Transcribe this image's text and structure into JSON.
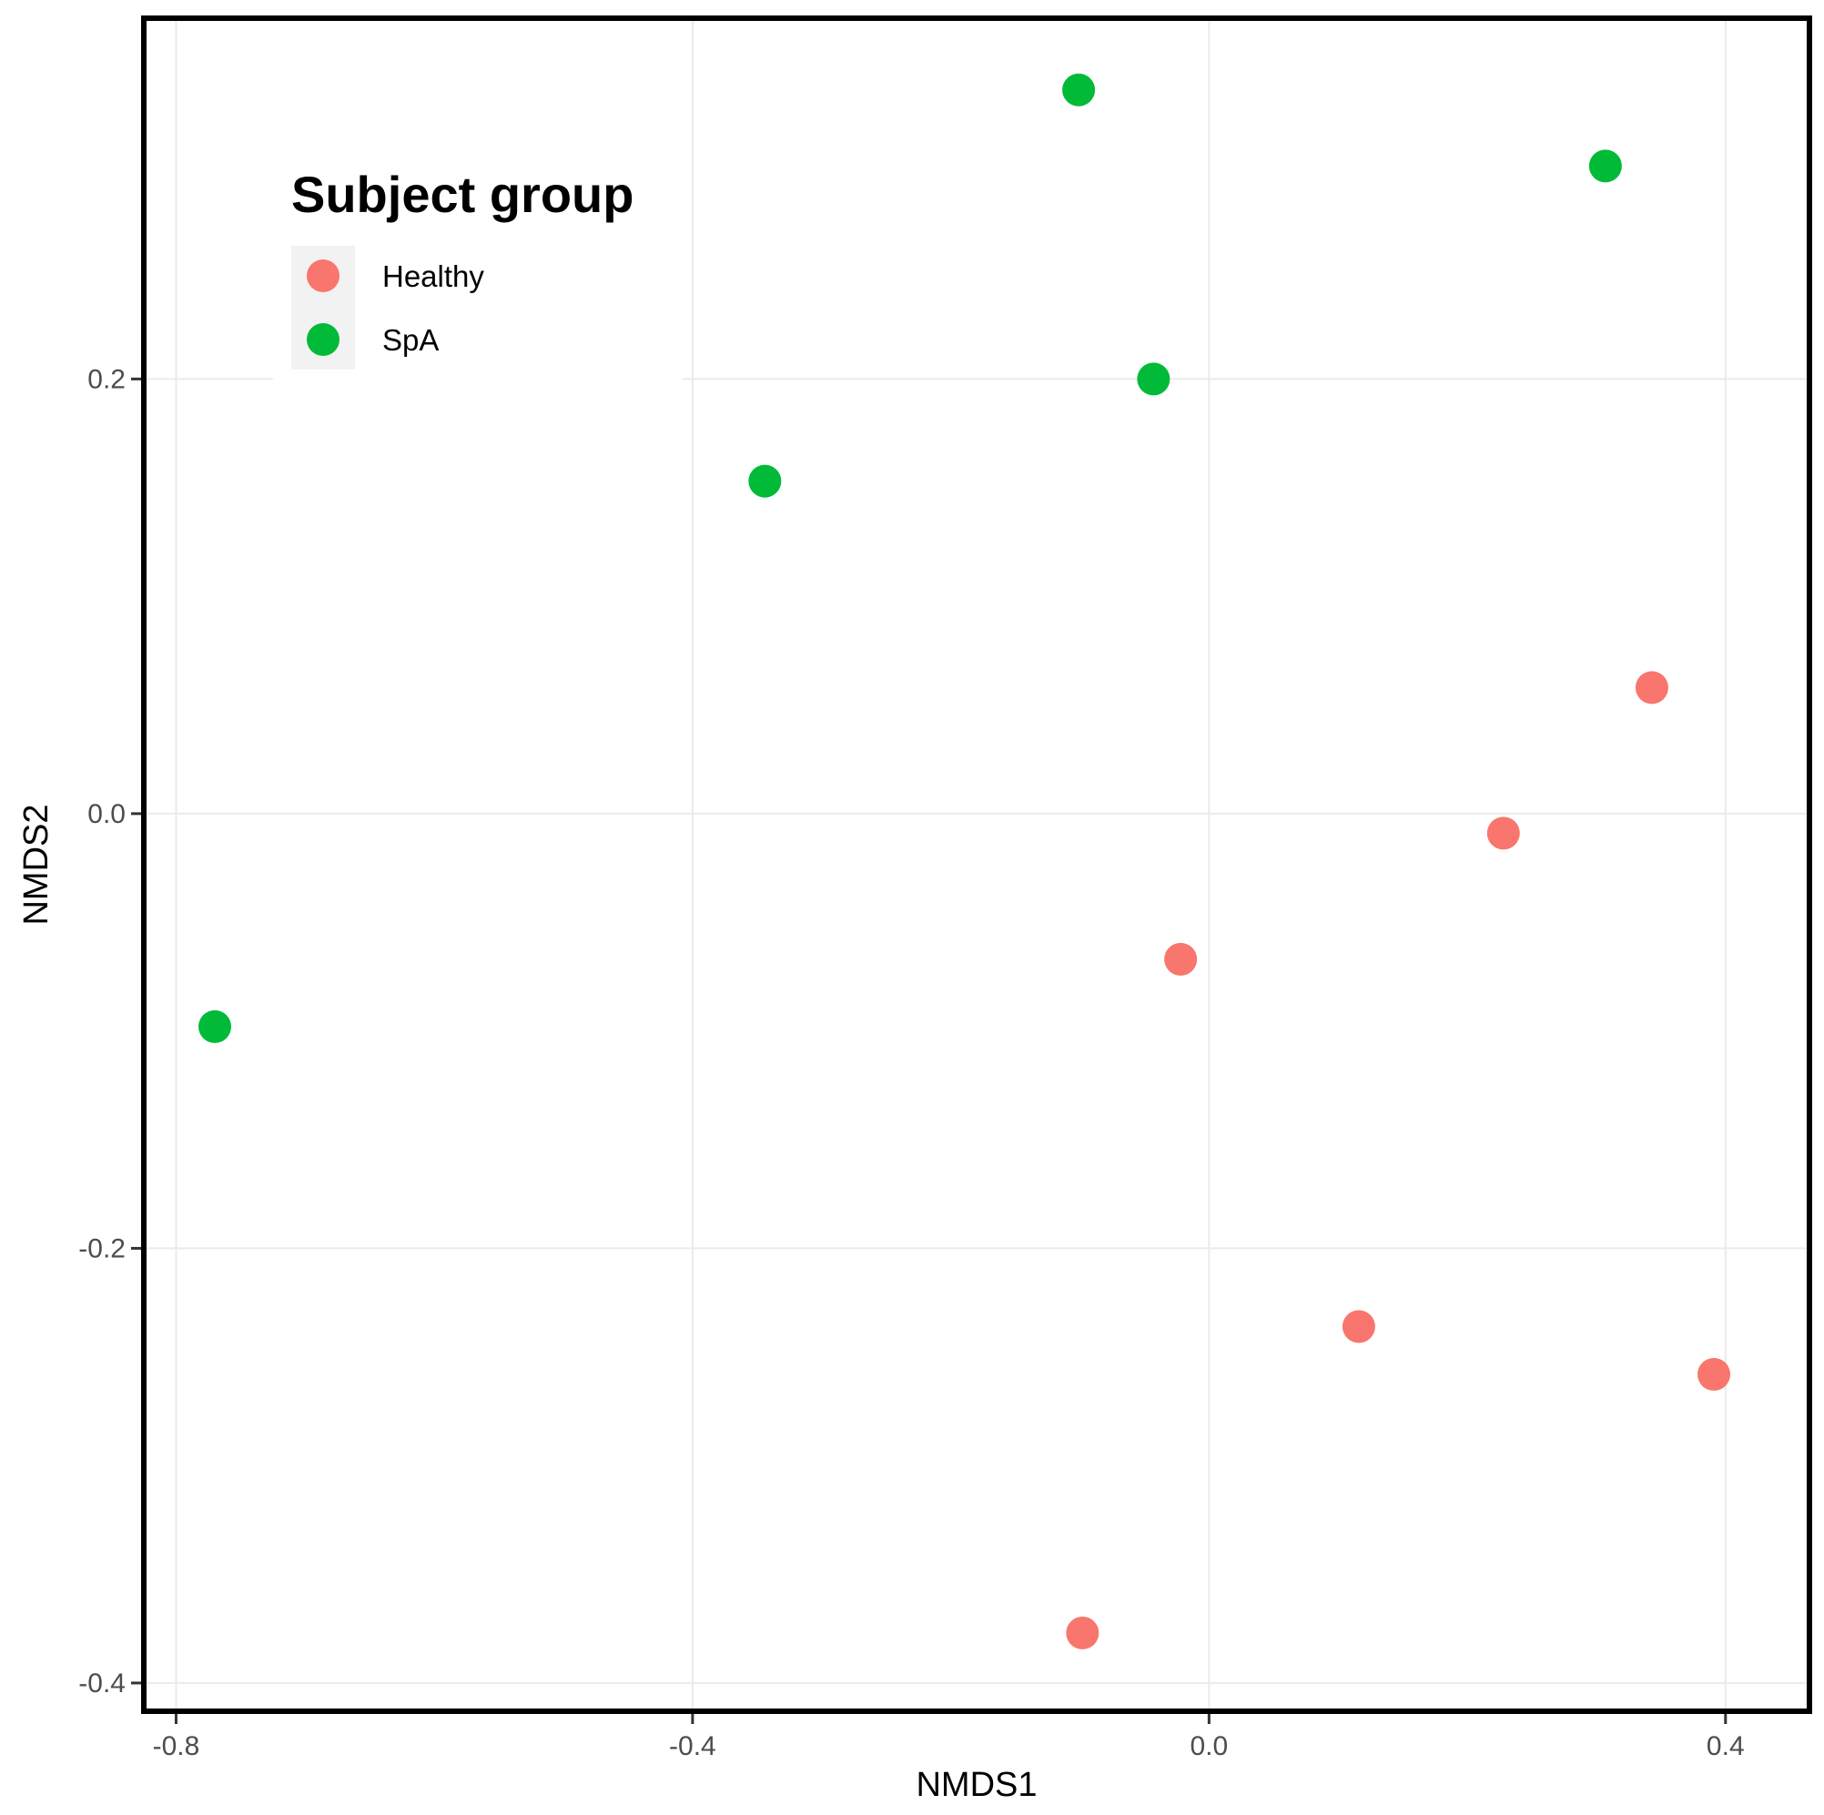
{
  "chart_data": {
    "type": "scatter",
    "xlabel": "NMDS1",
    "ylabel": "NMDS2",
    "xlim": [
      -0.825,
      0.465
    ],
    "ylim": [
      -0.413,
      0.366
    ],
    "xticks": [
      -0.8,
      -0.4,
      0.0,
      0.4
    ],
    "yticks": [
      -0.4,
      -0.2,
      0.0,
      0.2
    ],
    "xtick_labels": [
      "-0.8",
      "-0.4",
      "0.0",
      "0.4"
    ],
    "ytick_labels": [
      "-0.4",
      "-0.2",
      "0.0",
      "0.2"
    ],
    "grid": true,
    "legend": {
      "title": "Subject group",
      "placement": "top-left",
      "entries": [
        "Healthy",
        "SpA"
      ]
    },
    "series": [
      {
        "name": "Healthy",
        "color": "#F8766D",
        "x": [
          0.343,
          0.228,
          -0.022,
          0.116,
          0.391,
          -0.098
        ],
        "y": [
          0.058,
          -0.009,
          -0.067,
          -0.236,
          -0.258,
          -0.377
        ]
      },
      {
        "name": "SpA",
        "color": "#00BA38",
        "x": [
          -0.101,
          0.307,
          -0.043,
          -0.344,
          -0.77
        ],
        "y": [
          0.333,
          0.298,
          0.2,
          0.153,
          -0.098
        ]
      }
    ]
  }
}
